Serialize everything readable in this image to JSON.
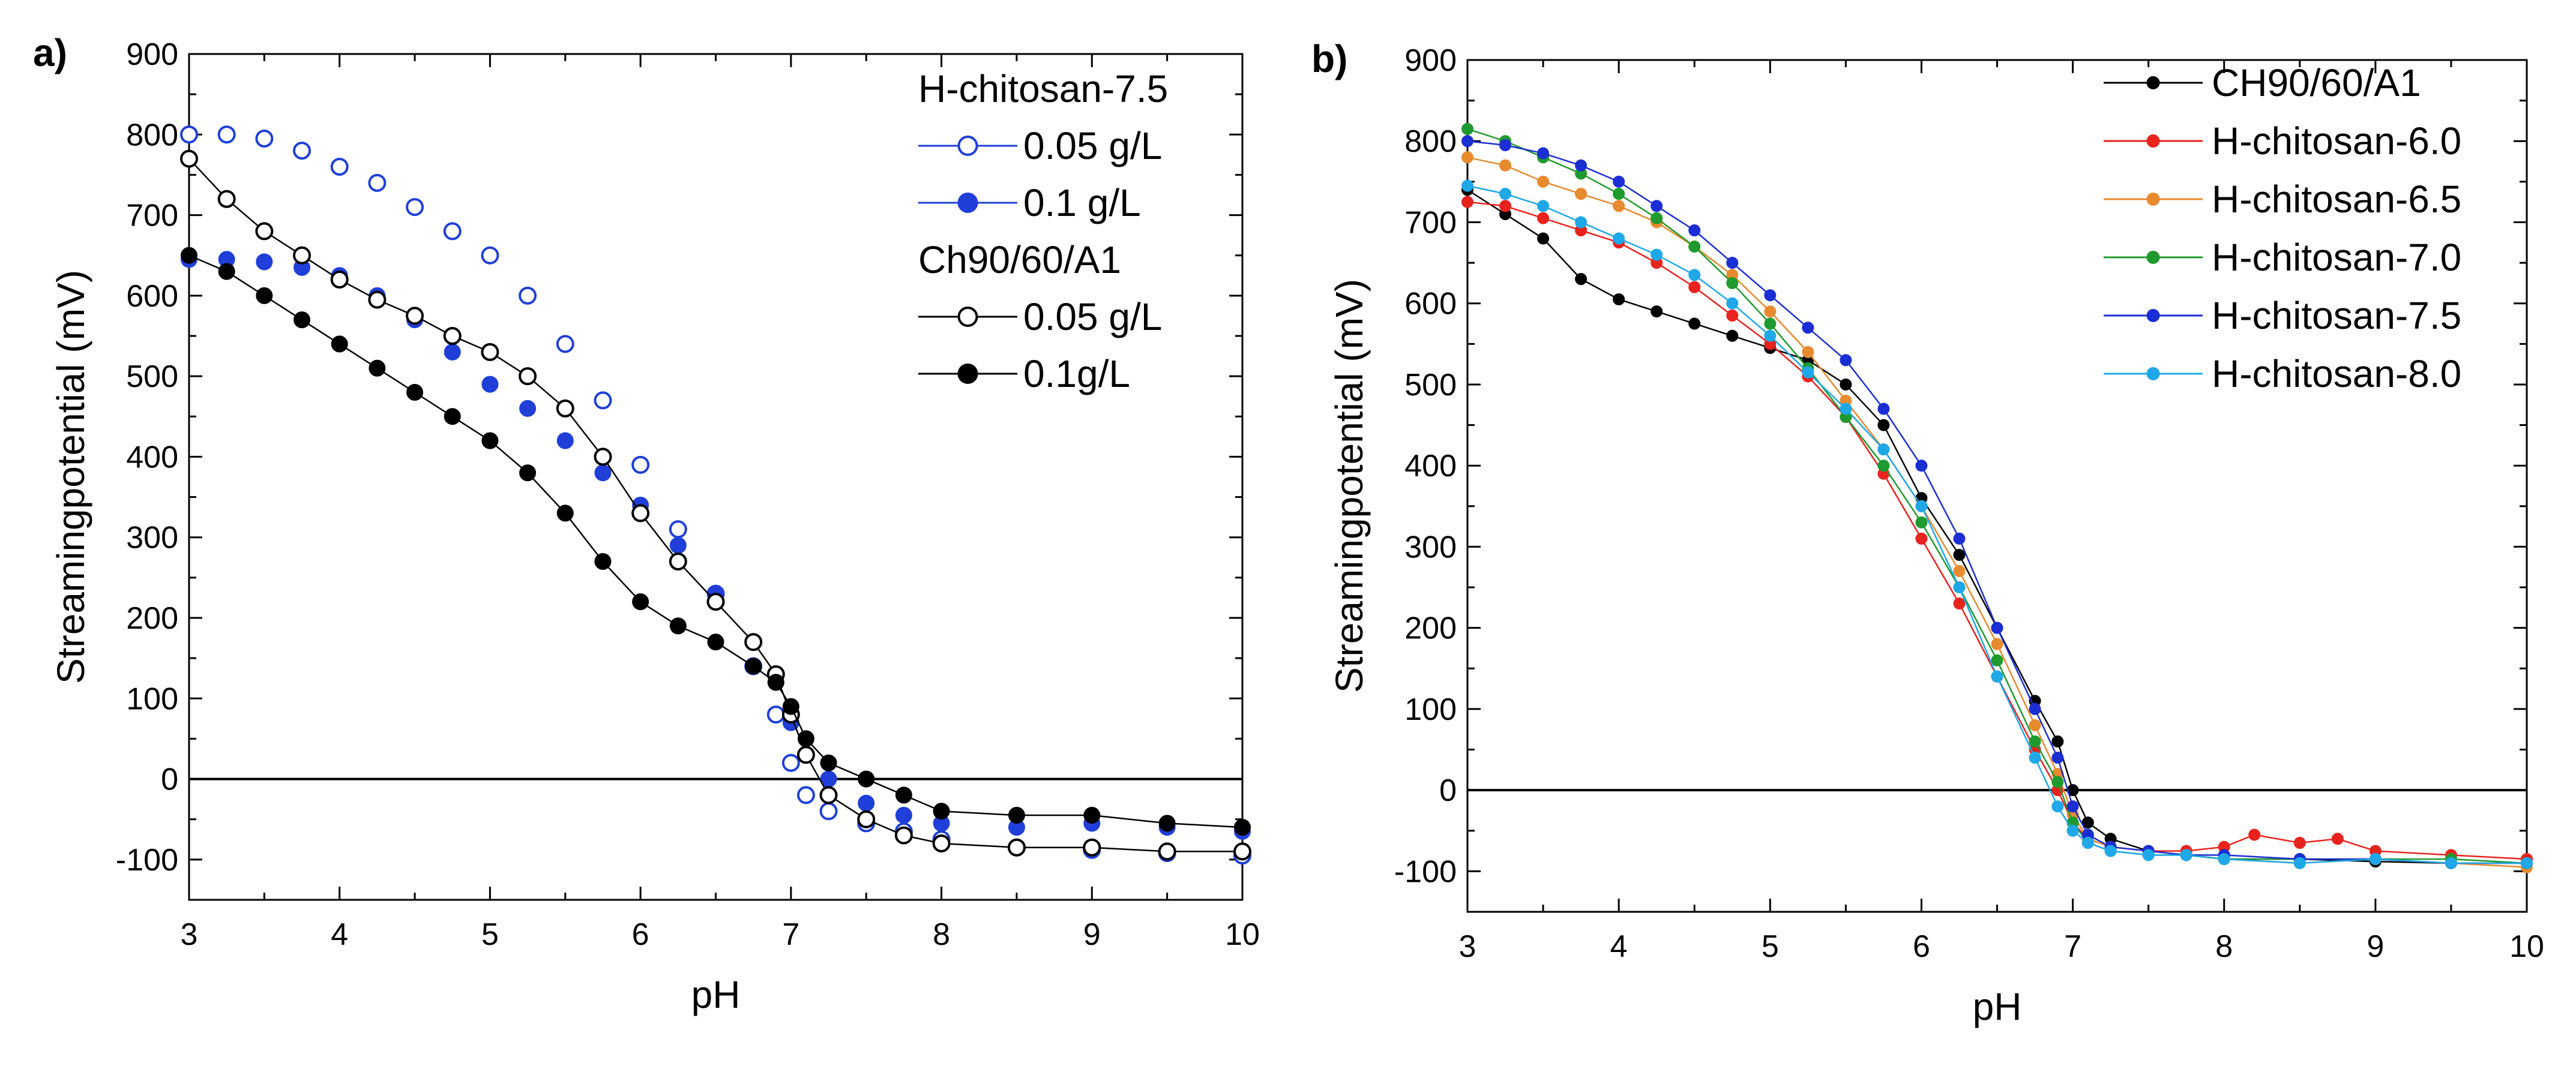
{
  "chart_data": [
    {
      "panel_label": "a)",
      "type": "scatter",
      "xlabel": "pH",
      "ylabel": "Streamingpotential (mV)",
      "xlim": [
        3,
        10
      ],
      "ylim": [
        -150,
        900
      ],
      "xticks": [
        "3",
        "4",
        "5",
        "6",
        "7",
        "8",
        "9",
        "10"
      ],
      "yticks": [
        "-100",
        "0",
        "100",
        "200",
        "300",
        "400",
        "500",
        "600",
        "700",
        "800",
        "900"
      ],
      "zero_line": true,
      "legend_placement": "top-right",
      "legend_groups": [
        {
          "title": "H-chitosan-7.5",
          "entries": [
            {
              "label": "0.05 g/L",
              "series": 0
            },
            {
              "label": "0.1 g/L",
              "series": 1
            }
          ]
        },
        {
          "title": "Ch90/60/A1",
          "entries": [
            {
              "label": "0.05 g/L",
              "series": 2
            },
            {
              "label": "0.1g/L",
              "series": 3
            }
          ]
        }
      ],
      "series": [
        {
          "color": "#1f3fd8",
          "marker": "open-circle",
          "line": false,
          "x": [
            3.0,
            3.25,
            3.5,
            3.75,
            4.0,
            4.25,
            4.5,
            4.75,
            5.0,
            5.25,
            5.5,
            5.75,
            6.0,
            6.25,
            6.5,
            6.75,
            6.9,
            7.0,
            7.1,
            7.25,
            7.5,
            7.75,
            8.0,
            8.5,
            9.0,
            9.5,
            10.0
          ],
          "y": [
            800,
            800,
            795,
            780,
            760,
            740,
            710,
            680,
            650,
            600,
            540,
            470,
            390,
            310,
            230,
            140,
            80,
            20,
            -20,
            -40,
            -55,
            -65,
            -75,
            -85,
            -88,
            -92,
            -95
          ]
        },
        {
          "color": "#1f3fd8",
          "marker": "filled-circle",
          "line": false,
          "x": [
            3.0,
            3.25,
            3.5,
            3.75,
            4.0,
            4.25,
            4.5,
            4.75,
            5.0,
            5.25,
            5.5,
            5.75,
            6.0,
            6.25,
            6.5,
            6.75,
            6.9,
            7.0,
            7.1,
            7.25,
            7.5,
            7.75,
            8.0,
            8.5,
            9.0,
            9.5,
            10.0
          ],
          "y": [
            645,
            645,
            642,
            635,
            625,
            600,
            570,
            530,
            490,
            460,
            420,
            380,
            340,
            290,
            230,
            170,
            120,
            70,
            30,
            0,
            -30,
            -45,
            -55,
            -60,
            -55,
            -60,
            -65
          ]
        },
        {
          "color": "#000000",
          "marker": "open-circle",
          "line": true,
          "x": [
            3.0,
            3.25,
            3.5,
            3.75,
            4.0,
            4.25,
            4.5,
            4.75,
            5.0,
            5.25,
            5.5,
            5.75,
            6.0,
            6.25,
            6.5,
            6.75,
            6.9,
            7.0,
            7.1,
            7.25,
            7.5,
            7.75,
            8.0,
            8.5,
            9.0,
            9.5,
            10.0
          ],
          "y": [
            770,
            720,
            680,
            650,
            620,
            595,
            575,
            550,
            530,
            500,
            460,
            400,
            330,
            270,
            220,
            170,
            130,
            80,
            30,
            -20,
            -50,
            -70,
            -80,
            -85,
            -85,
            -90,
            -90
          ]
        },
        {
          "color": "#000000",
          "marker": "filled-circle",
          "line": true,
          "x": [
            3.0,
            3.25,
            3.5,
            3.75,
            4.0,
            4.25,
            4.5,
            4.75,
            5.0,
            5.25,
            5.5,
            5.75,
            6.0,
            6.25,
            6.5,
            6.75,
            6.9,
            7.0,
            7.1,
            7.25,
            7.5,
            7.75,
            8.0,
            8.5,
            9.0,
            9.5,
            10.0
          ],
          "y": [
            650,
            630,
            600,
            570,
            540,
            510,
            480,
            450,
            420,
            380,
            330,
            270,
            220,
            190,
            170,
            140,
            120,
            90,
            50,
            20,
            0,
            -20,
            -40,
            -45,
            -45,
            -55,
            -60
          ]
        }
      ]
    },
    {
      "panel_label": "b)",
      "type": "line",
      "xlabel": "pH",
      "ylabel": "Streamingpotential (mV)",
      "xlim": [
        3,
        10
      ],
      "ylim": [
        -150,
        900
      ],
      "xticks": [
        "3",
        "4",
        "5",
        "6",
        "7",
        "8",
        "9",
        "10"
      ],
      "yticks": [
        "-100",
        "0",
        "100",
        "200",
        "300",
        "400",
        "500",
        "600",
        "700",
        "800",
        "900"
      ],
      "zero_line": true,
      "legend_placement": "top-right",
      "series": [
        {
          "name": "CH90/60/A1",
          "color": "#000000",
          "x": [
            3.0,
            3.25,
            3.5,
            3.75,
            4.0,
            4.25,
            4.5,
            4.75,
            5.0,
            5.25,
            5.5,
            5.75,
            6.0,
            6.25,
            6.5,
            6.75,
            6.9,
            7.0,
            7.1,
            7.25,
            7.5,
            7.75,
            8.0,
            8.5,
            9.0,
            9.5,
            10.0
          ],
          "y": [
            740,
            710,
            680,
            630,
            605,
            590,
            575,
            560,
            545,
            530,
            500,
            450,
            360,
            290,
            200,
            110,
            60,
            0,
            -40,
            -60,
            -75,
            -80,
            -85,
            -85,
            -88,
            -90,
            -90
          ]
        },
        {
          "name": "H-chitosan-6.0",
          "color": "#e8231e",
          "x": [
            3.0,
            3.25,
            3.5,
            3.75,
            4.0,
            4.25,
            4.5,
            4.75,
            5.0,
            5.25,
            5.5,
            5.75,
            6.0,
            6.25,
            6.5,
            6.75,
            6.9,
            7.0,
            7.1,
            7.25,
            7.5,
            7.75,
            8.0,
            8.2,
            8.5,
            8.75,
            9.0,
            9.5,
            10.0
          ],
          "y": [
            725,
            720,
            705,
            690,
            675,
            650,
            620,
            585,
            550,
            510,
            460,
            390,
            310,
            230,
            140,
            50,
            0,
            -40,
            -60,
            -70,
            -75,
            -75,
            -70,
            -55,
            -65,
            -60,
            -75,
            -80,
            -85
          ]
        },
        {
          "name": "H-chitosan-6.5",
          "color": "#e88a2e",
          "x": [
            3.0,
            3.25,
            3.5,
            3.75,
            4.0,
            4.25,
            4.5,
            4.75,
            5.0,
            5.25,
            5.5,
            5.75,
            6.0,
            6.25,
            6.5,
            6.75,
            6.9,
            7.0,
            7.1,
            7.25,
            7.5,
            7.75,
            8.0,
            8.5,
            9.0,
            9.5,
            10.0
          ],
          "y": [
            780,
            770,
            750,
            735,
            720,
            700,
            670,
            635,
            590,
            540,
            480,
            420,
            350,
            270,
            180,
            80,
            20,
            -30,
            -60,
            -70,
            -75,
            -80,
            -85,
            -90,
            -85,
            -90,
            -95
          ]
        },
        {
          "name": "H-chitosan-7.0",
          "color": "#1e9a2e",
          "x": [
            3.0,
            3.25,
            3.5,
            3.75,
            4.0,
            4.25,
            4.5,
            4.75,
            5.0,
            5.25,
            5.5,
            5.75,
            6.0,
            6.25,
            6.5,
            6.75,
            6.9,
            7.0,
            7.1,
            7.25,
            7.5,
            7.75,
            8.0,
            8.5,
            9.0,
            9.5,
            10.0
          ],
          "y": [
            815,
            800,
            780,
            760,
            735,
            705,
            670,
            625,
            575,
            520,
            460,
            400,
            330,
            250,
            160,
            60,
            10,
            -40,
            -65,
            -75,
            -80,
            -80,
            -85,
            -85,
            -85,
            -85,
            -90
          ]
        },
        {
          "name": "H-chitosan-7.5",
          "color": "#1b2ed4",
          "x": [
            3.0,
            3.25,
            3.5,
            3.75,
            4.0,
            4.25,
            4.5,
            4.75,
            5.0,
            5.25,
            5.5,
            5.75,
            6.0,
            6.25,
            6.5,
            6.75,
            6.9,
            7.0,
            7.1,
            7.25,
            7.5,
            7.75,
            8.0,
            8.5,
            9.0,
            9.5,
            10.0
          ],
          "y": [
            800,
            795,
            785,
            770,
            750,
            720,
            690,
            650,
            610,
            570,
            530,
            470,
            400,
            310,
            200,
            100,
            40,
            -20,
            -55,
            -70,
            -75,
            -80,
            -80,
            -85,
            -85,
            -90,
            -90
          ]
        },
        {
          "name": "H-chitosan-8.0",
          "color": "#1ea8e8",
          "x": [
            3.0,
            3.25,
            3.5,
            3.75,
            4.0,
            4.25,
            4.5,
            4.75,
            5.0,
            5.25,
            5.5,
            5.75,
            6.0,
            6.25,
            6.5,
            6.75,
            6.9,
            7.0,
            7.1,
            7.25,
            7.5,
            7.75,
            8.0,
            8.5,
            9.0,
            9.5,
            10.0
          ],
          "y": [
            745,
            735,
            720,
            700,
            680,
            660,
            635,
            600,
            560,
            515,
            470,
            420,
            350,
            250,
            140,
            40,
            -20,
            -50,
            -65,
            -75,
            -80,
            -80,
            -85,
            -90,
            -85,
            -90,
            -90
          ]
        }
      ]
    }
  ]
}
